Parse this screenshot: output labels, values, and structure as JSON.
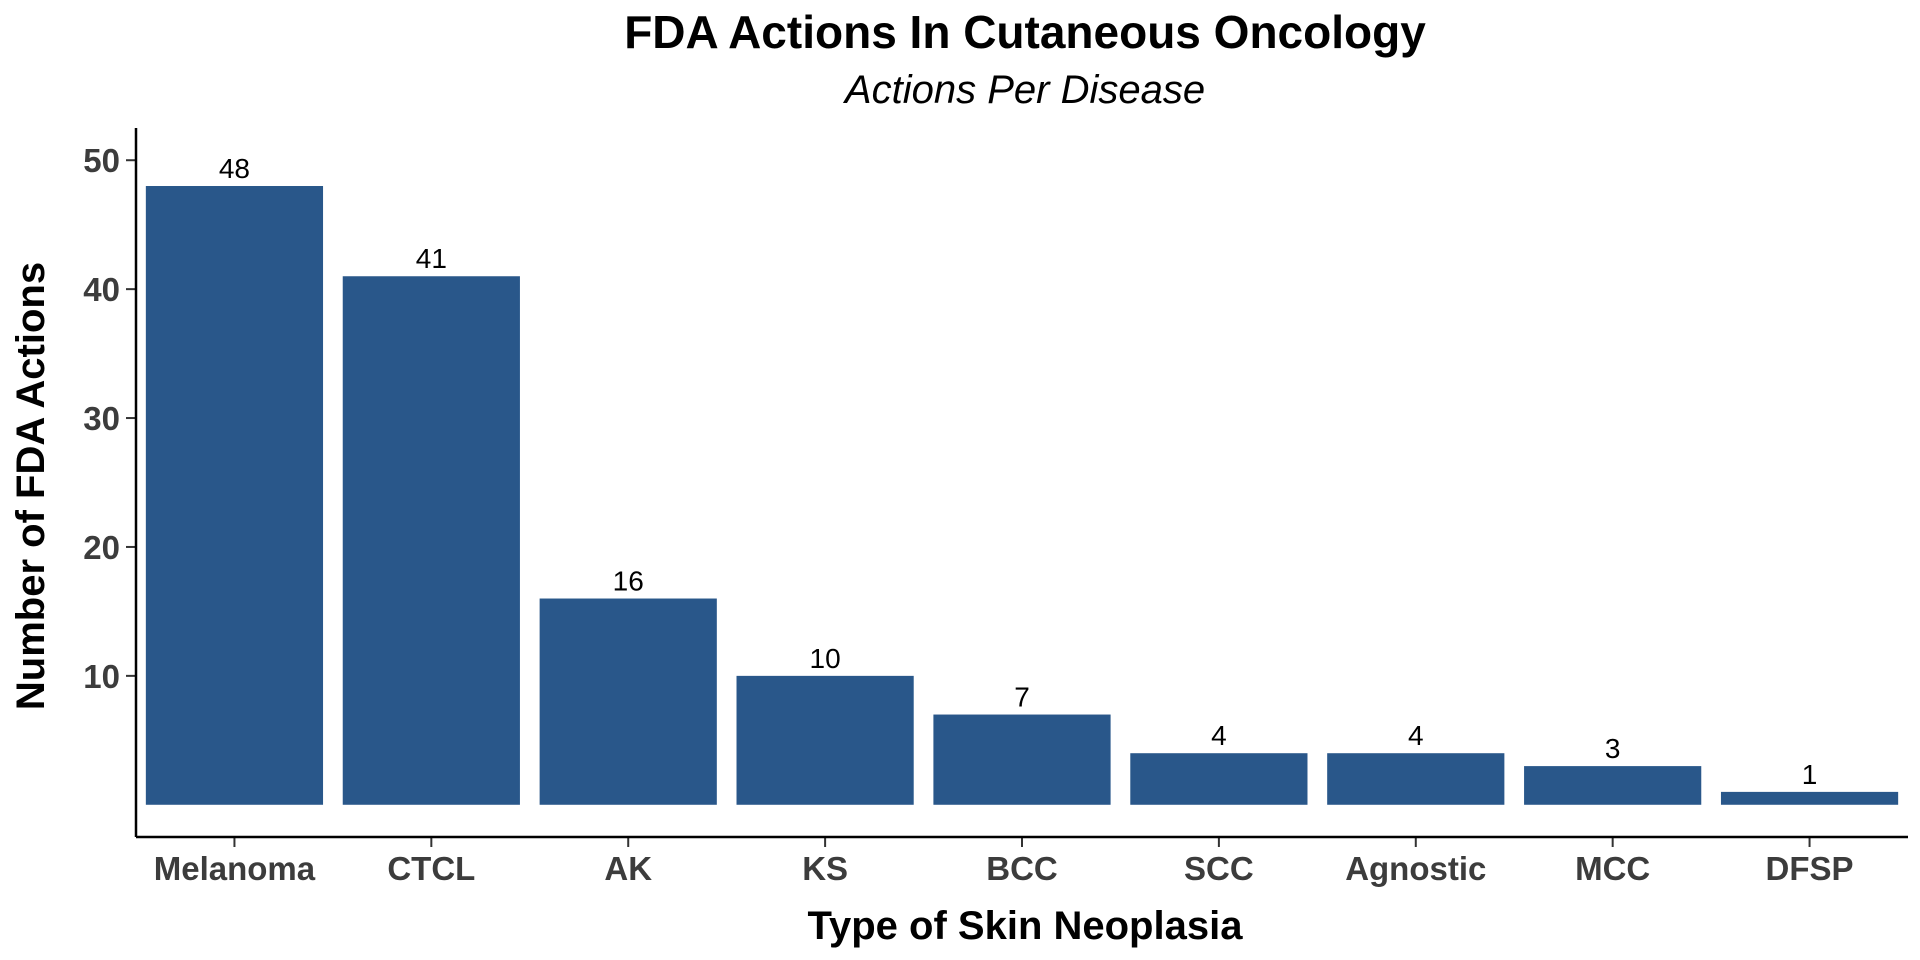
{
  "chart_data": {
    "type": "bar",
    "title": "FDA Actions In Cutaneous Oncology",
    "subtitle": "Actions Per Disease",
    "xlabel": "Type of Skin Neoplasia",
    "ylabel": "Number of FDA Actions",
    "categories": [
      "Melanoma",
      "CTCL",
      "AK",
      "KS",
      "BCC",
      "SCC",
      "Agnostic",
      "MCC",
      "DFSP"
    ],
    "values": [
      48,
      41,
      16,
      10,
      7,
      4,
      4,
      3,
      1
    ],
    "data_labels": [
      "48",
      "41",
      "16",
      "10",
      "7",
      "4",
      "4",
      "3",
      "1"
    ],
    "yticks": [
      10,
      20,
      30,
      40,
      50
    ],
    "ytick_labels": [
      "10",
      "20",
      "30",
      "40",
      "50"
    ],
    "ylim": [
      -2.5,
      52.5
    ],
    "bar_color": "#29578a",
    "grid": false,
    "legend": "none"
  }
}
